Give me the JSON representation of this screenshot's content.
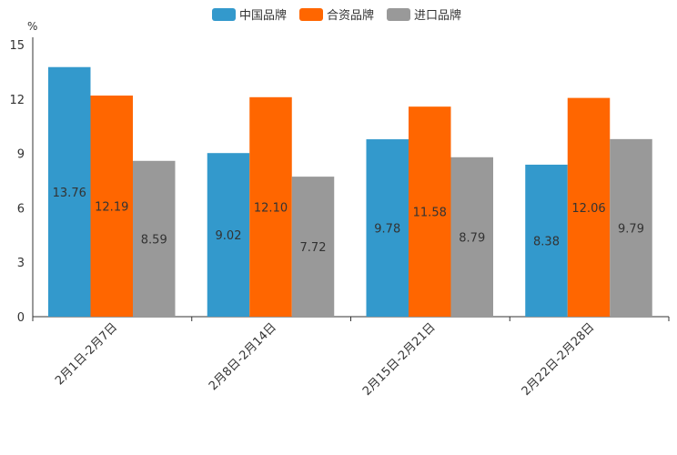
{
  "chart_data": {
    "type": "bar",
    "title": "",
    "xlabel": "",
    "ylabel": "%",
    "ylim": [
      0,
      15
    ],
    "yticks": [
      0,
      3,
      6,
      9,
      12,
      15
    ],
    "grid": false,
    "legend_position": "top-center",
    "categories": [
      "2月1日-2月7日",
      "2月8日-2月14日",
      "2月15日-2月21日",
      "2月22日-2月28日"
    ],
    "series": [
      {
        "name": "中国品牌",
        "color": "#3399cc",
        "values": [
          13.76,
          9.02,
          9.78,
          8.38
        ]
      },
      {
        "name": "合资品牌",
        "color": "#ff6600",
        "values": [
          12.19,
          12.1,
          11.58,
          12.06
        ]
      },
      {
        "name": "进口品牌",
        "color": "#999999",
        "values": [
          8.59,
          7.72,
          8.79,
          9.79
        ]
      }
    ],
    "data_labels": [
      [
        "13.76",
        "9.02",
        "9.78",
        "8.38"
      ],
      [
        "12.19",
        "12.10",
        "11.58",
        "12.06"
      ],
      [
        "8.59",
        "7.72",
        "8.79",
        "9.79"
      ]
    ]
  }
}
